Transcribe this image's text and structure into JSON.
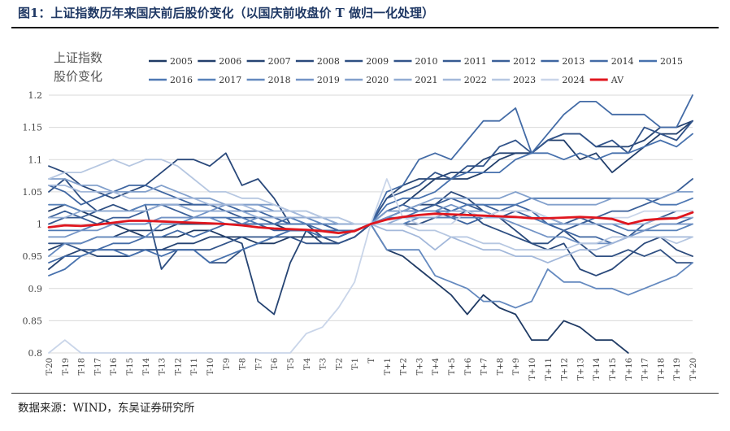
{
  "figure": {
    "title": "图1：上证指数历年来国庆前后股价变化（以国庆前收盘价 T 做归一化处理）",
    "source": "数据来源：WIND，东吴证券研究所"
  },
  "chart_data": {
    "type": "line",
    "title": "",
    "ylabel_lines": [
      "上证指数",
      "股价变化"
    ],
    "xlabel": "",
    "ylim": [
      0.8,
      1.2
    ],
    "yticks": [
      0.8,
      0.85,
      0.9,
      0.95,
      1,
      1.05,
      1.1,
      1.15,
      1.2
    ],
    "grid": true,
    "legend_position": "top",
    "categories": [
      "T-20",
      "T-19",
      "T-18",
      "T-17",
      "T-16",
      "T-15",
      "T-14",
      "T-13",
      "T-12",
      "T-11",
      "T-10",
      "T-9",
      "T-8",
      "T-7",
      "T-6",
      "T-5",
      "T-4",
      "T-3",
      "T-2",
      "T-1",
      "T",
      "T+1",
      "T+2",
      "T+3",
      "T+4",
      "T+5",
      "T+6",
      "T+7",
      "T+8",
      "T+9",
      "T+10",
      "T+11",
      "T+12",
      "T+13",
      "T+14",
      "T+15",
      "T+16",
      "T+17",
      "T+18",
      "T+19",
      "T+20"
    ],
    "series": [
      {
        "name": "2005",
        "color": "#1f3a64",
        "values": [
          1.02,
          1.03,
          1.02,
          1.01,
          1.0,
          0.99,
          0.98,
          0.98,
          0.98,
          0.99,
          0.99,
          0.98,
          0.98,
          0.97,
          0.97,
          0.98,
          0.98,
          0.98,
          0.98,
          0.99,
          1.0,
          0.96,
          0.95,
          0.93,
          0.91,
          0.89,
          0.86,
          0.89,
          0.87,
          0.86,
          0.82,
          0.82,
          0.85,
          0.84,
          0.82,
          0.82,
          0.8,
          null,
          null,
          null,
          null
        ]
      },
      {
        "name": "2006",
        "color": "#223f6c",
        "values": [
          0.96,
          0.97,
          0.97,
          0.98,
          0.98,
          0.99,
          0.99,
          0.99,
          1.0,
          1.0,
          1.0,
          1.0,
          1.0,
          1.0,
          1.0,
          0.99,
          0.99,
          0.99,
          0.99,
          0.99,
          1.0,
          1.02,
          1.03,
          1.05,
          1.07,
          1.07,
          1.07,
          1.08,
          1.1,
          1.11,
          1.11,
          1.13,
          1.13,
          1.1,
          1.11,
          1.08,
          1.1,
          1.12,
          1.14,
          1.14,
          1.16
        ]
      },
      {
        "name": "2007",
        "color": "#264473",
        "values": [
          0.93,
          0.95,
          0.96,
          0.95,
          0.95,
          0.95,
          0.96,
          0.96,
          0.97,
          0.97,
          0.98,
          0.98,
          0.97,
          0.88,
          0.86,
          0.94,
          0.99,
          0.97,
          0.97,
          0.98,
          1.0,
          1.04,
          1.06,
          1.07,
          1.07,
          1.08,
          1.08,
          1.1,
          1.11,
          1.11,
          1.11,
          1.13,
          1.14,
          1.14,
          1.12,
          1.12,
          1.12,
          1.13,
          1.15,
          1.15,
          1.16
        ]
      },
      {
        "name": "2008",
        "color": "#2a497b",
        "values": [
          1.09,
          1.08,
          1.06,
          1.05,
          1.04,
          1.05,
          1.06,
          1.08,
          1.1,
          1.1,
          1.09,
          1.11,
          1.06,
          1.07,
          1.04,
          1.0,
          1.0,
          0.98,
          0.97,
          0.98,
          1.0,
          1.01,
          1.02,
          1.03,
          1.03,
          1.05,
          1.04,
          1.02,
          1.01,
          0.99,
          0.97,
          0.96,
          0.97,
          0.93,
          0.92,
          0.93,
          0.95,
          0.97,
          0.98,
          0.96,
          0.95
        ]
      },
      {
        "name": "2009",
        "color": "#2e4f82",
        "values": [
          1.05,
          1.07,
          1.04,
          1.02,
          1.03,
          1.02,
          1.03,
          0.93,
          0.96,
          0.96,
          0.94,
          0.94,
          0.96,
          0.97,
          0.98,
          0.99,
          0.99,
          0.99,
          0.99,
          0.99,
          1.0,
          1.0,
          1.0,
          1.0,
          1.01,
          1.01,
          1.02,
          1.0,
          0.99,
          0.98,
          0.97,
          0.97,
          0.99,
          0.97,
          0.95,
          0.95,
          0.96,
          0.95,
          0.96,
          0.94,
          0.94
        ]
      },
      {
        "name": "2010",
        "color": "#32548a",
        "values": [
          0.97,
          0.97,
          0.96,
          0.96,
          0.96,
          0.96,
          0.96,
          0.96,
          0.96,
          0.96,
          0.96,
          0.97,
          0.98,
          0.98,
          0.98,
          0.98,
          0.97,
          0.97,
          0.97,
          0.98,
          1.0,
          1.04,
          1.05,
          1.06,
          1.08,
          1.07,
          1.09,
          1.09,
          1.12,
          1.13,
          1.11,
          1.13,
          1.14,
          1.14,
          1.12,
          1.13,
          1.11,
          1.15,
          1.14,
          1.13,
          1.16
        ]
      },
      {
        "name": "2011",
        "color": "#365a91",
        "values": [
          1.0,
          1.01,
          1.01,
          1.02,
          1.02,
          1.02,
          1.02,
          1.03,
          1.03,
          1.03,
          1.03,
          1.02,
          1.01,
          1.01,
          1.0,
          1.0,
          1.0,
          1.0,
          0.99,
          0.99,
          1.0,
          1.01,
          1.02,
          1.02,
          1.03,
          1.02,
          1.03,
          1.02,
          1.01,
          1.02,
          1.02,
          1.01,
          1.0,
          1.01,
          1.0,
          0.99,
          0.98,
          1.0,
          1.01,
          1.02,
          1.02
        ]
      },
      {
        "name": "2012",
        "color": "#3a5f98",
        "values": [
          1.01,
          1.02,
          1.01,
          1.0,
          1.01,
          1.01,
          1.02,
          1.03,
          1.02,
          1.01,
          1.01,
          1.01,
          1.0,
          1.0,
          0.99,
          0.99,
          0.99,
          0.98,
          0.98,
          0.99,
          1.0,
          1.02,
          1.02,
          1.02,
          1.03,
          1.04,
          1.03,
          1.03,
          1.02,
          1.02,
          1.01,
          1.0,
          0.99,
          1.0,
          1.01,
          1.02,
          1.02,
          1.03,
          1.04,
          1.05,
          1.07
        ]
      },
      {
        "name": "2013",
        "color": "#3e65a0",
        "values": [
          1.06,
          1.05,
          1.03,
          1.04,
          1.05,
          1.06,
          1.06,
          1.05,
          1.04,
          1.03,
          1.03,
          1.03,
          1.02,
          1.02,
          1.01,
          1.0,
          1.0,
          1.0,
          0.99,
          0.99,
          1.0,
          1.02,
          1.03,
          1.02,
          1.02,
          1.01,
          1.0,
          1.01,
          1.02,
          1.03,
          1.02,
          1.0,
          0.99,
          0.98,
          0.98,
          0.97,
          0.98,
          0.99,
          1.0,
          1.0,
          1.01
        ]
      },
      {
        "name": "2014",
        "color": "#436ba6",
        "values": [
          0.94,
          0.95,
          0.95,
          0.96,
          0.97,
          0.97,
          0.98,
          0.98,
          0.99,
          0.98,
          0.99,
          1.0,
          1.0,
          1.0,
          1.0,
          1.01,
          1.0,
          0.99,
          0.99,
          0.99,
          1.0,
          1.05,
          1.06,
          1.1,
          1.11,
          1.1,
          1.13,
          1.16,
          1.16,
          1.18,
          1.11,
          1.14,
          1.17,
          1.19,
          1.19,
          1.17,
          1.17,
          1.17,
          1.15,
          1.15,
          1.2
        ]
      },
      {
        "name": "2015",
        "color": "#4771ad",
        "values": [
          0.92,
          0.93,
          0.95,
          0.96,
          0.96,
          0.95,
          0.96,
          0.95,
          0.96,
          0.96,
          0.94,
          0.95,
          0.96,
          0.97,
          0.98,
          0.99,
          0.99,
          0.98,
          0.98,
          0.99,
          1.0,
          1.03,
          1.04,
          1.04,
          1.05,
          1.07,
          1.08,
          1.08,
          1.08,
          1.1,
          1.11,
          1.11,
          1.1,
          1.11,
          1.1,
          1.11,
          1.11,
          1.12,
          1.13,
          1.12,
          1.14
        ]
      },
      {
        "name": "2016",
        "color": "#4e78b3",
        "values": [
          0.99,
          0.99,
          0.99,
          1.0,
          1.0,
          1.0,
          1.0,
          1.01,
          1.01,
          1.01,
          1.01,
          1.01,
          1.01,
          1.0,
          1.0,
          1.0,
          1.0,
          1.0,
          1.0,
          1.0,
          1.0,
          1.01,
          1.01,
          1.02,
          1.02,
          1.02,
          1.03,
          1.03,
          1.03,
          1.03,
          1.04,
          1.04,
          1.04,
          1.04,
          1.04,
          1.04,
          1.04,
          1.04,
          1.03,
          1.03,
          1.04
        ]
      },
      {
        "name": "2017",
        "color": "#5881b9",
        "values": [
          1.03,
          1.03,
          1.02,
          1.02,
          1.02,
          1.02,
          1.03,
          1.03,
          1.03,
          1.02,
          1.02,
          1.02,
          1.02,
          1.01,
          1.01,
          1.01,
          1.0,
          1.0,
          1.0,
          1.0,
          1.0,
          1.0,
          1.0,
          1.01,
          1.01,
          1.01,
          1.01,
          1.01,
          1.01,
          1.01,
          1.01,
          1.0,
          1.0,
          1.0,
          1.0,
          1.0,
          0.99,
          0.99,
          0.99,
          0.99,
          1.0
        ]
      },
      {
        "name": "2018",
        "color": "#6489bf",
        "values": [
          0.95,
          0.97,
          0.97,
          0.98,
          0.98,
          0.98,
          0.98,
          1.0,
          1.0,
          1.01,
          1.01,
          1.0,
          1.0,
          1.01,
          1.01,
          1.01,
          1.01,
          1.0,
          1.0,
          1.0,
          1.0,
          0.96,
          0.96,
          0.96,
          0.92,
          0.91,
          0.9,
          0.88,
          0.88,
          0.87,
          0.88,
          0.93,
          0.91,
          0.91,
          0.9,
          0.9,
          0.89,
          0.9,
          0.91,
          0.92,
          0.94
        ]
      },
      {
        "name": "2019",
        "color": "#7394c6",
        "values": [
          0.98,
          0.98,
          0.99,
          0.99,
          1.0,
          1.0,
          1.0,
          1.01,
          1.01,
          1.01,
          1.02,
          1.03,
          1.03,
          1.03,
          1.02,
          1.02,
          1.02,
          1.01,
          1.0,
          1.0,
          1.0,
          1.01,
          1.02,
          1.02,
          1.02,
          1.03,
          1.02,
          1.02,
          1.01,
          1.0,
          0.99,
          0.98,
          0.98,
          0.97,
          0.97,
          0.97,
          0.98,
          0.99,
          1.0,
          1.0,
          1.0
        ]
      },
      {
        "name": "2020",
        "color": "#82a0cc",
        "values": [
          1.07,
          1.07,
          1.06,
          1.06,
          1.05,
          1.05,
          1.05,
          1.06,
          1.05,
          1.04,
          1.04,
          1.03,
          1.03,
          1.03,
          1.03,
          1.02,
          1.01,
          1.01,
          1.0,
          1.0,
          1.0,
          1.02,
          1.02,
          1.03,
          1.04,
          1.04,
          1.04,
          1.04,
          1.04,
          1.05,
          1.04,
          1.03,
          1.03,
          1.03,
          1.03,
          1.04,
          1.04,
          1.04,
          1.04,
          1.05,
          1.05
        ]
      },
      {
        "name": "2021",
        "color": "#92acd3",
        "values": [
          1.01,
          1.01,
          1.02,
          1.02,
          1.02,
          1.02,
          1.02,
          1.03,
          1.03,
          1.02,
          1.02,
          1.02,
          1.02,
          1.01,
          1.01,
          1.01,
          1.01,
          1.01,
          1.0,
          1.0,
          1.0,
          1.0,
          1.01,
          1.01,
          1.01,
          1.02,
          1.02,
          1.01,
          1.01,
          1.01,
          1.01,
          1.01,
          1.0,
          1.0,
          1.0,
          1.0,
          1.0,
          1.0,
          1.01,
          1.01,
          1.01
        ]
      },
      {
        "name": "2022",
        "color": "#a3b8da",
        "values": [
          1.06,
          1.06,
          1.05,
          1.05,
          1.05,
          1.04,
          1.04,
          1.04,
          1.04,
          1.04,
          1.03,
          1.03,
          1.03,
          1.02,
          1.02,
          1.02,
          1.01,
          1.01,
          1.01,
          1.0,
          1.0,
          0.99,
          0.99,
          0.98,
          0.96,
          0.98,
          0.97,
          0.96,
          0.96,
          0.95,
          0.95,
          0.94,
          0.95,
          0.96,
          0.96,
          0.97,
          0.98,
          0.98,
          0.98,
          0.98,
          0.98
        ]
      },
      {
        "name": "2023",
        "color": "#b6c7e1",
        "values": [
          1.07,
          1.08,
          1.08,
          1.09,
          1.1,
          1.09,
          1.1,
          1.1,
          1.09,
          1.07,
          1.05,
          1.05,
          1.04,
          1.04,
          1.03,
          1.02,
          1.02,
          1.01,
          1.01,
          1.0,
          1.0,
          1.0,
          1.0,
          0.99,
          0.99,
          0.98,
          0.98,
          0.97,
          0.97,
          0.96,
          0.96,
          0.96,
          0.96,
          0.97,
          0.97,
          0.98,
          0.98,
          0.98,
          0.98,
          0.97,
          0.98
        ]
      },
      {
        "name": "2024",
        "color": "#c9d5e9",
        "values": [
          0.8,
          0.82,
          0.8,
          0.8,
          0.8,
          0.8,
          0.8,
          0.8,
          0.8,
          0.8,
          0.8,
          0.8,
          0.8,
          0.8,
          0.8,
          0.8,
          0.83,
          0.84,
          0.87,
          0.91,
          1.0,
          1.07,
          1.01,
          1.0,
          1.0,
          1.0,
          1.02,
          1.01,
          1.02,
          1.02,
          1.02,
          1.01,
          1.01,
          1.01,
          1.01,
          1.01,
          1.01,
          1.02,
          1.02,
          1.02,
          1.02
        ]
      },
      {
        "name": "AV",
        "color": "#e0161e",
        "width": 2.8,
        "values": [
          0.995,
          0.998,
          0.997,
          0.999,
          1.002,
          1.005,
          1.005,
          1.004,
          1.003,
          1.002,
          1.001,
          1.0,
          0.998,
          0.995,
          0.993,
          0.992,
          0.991,
          0.989,
          0.986,
          0.989,
          1.0,
          1.007,
          1.011,
          1.014,
          1.016,
          1.015,
          1.014,
          1.013,
          1.012,
          1.011,
          1.009,
          1.009,
          1.01,
          1.011,
          1.01,
          1.008,
          1.0,
          1.006,
          1.008,
          1.009,
          1.018
        ]
      }
    ]
  }
}
